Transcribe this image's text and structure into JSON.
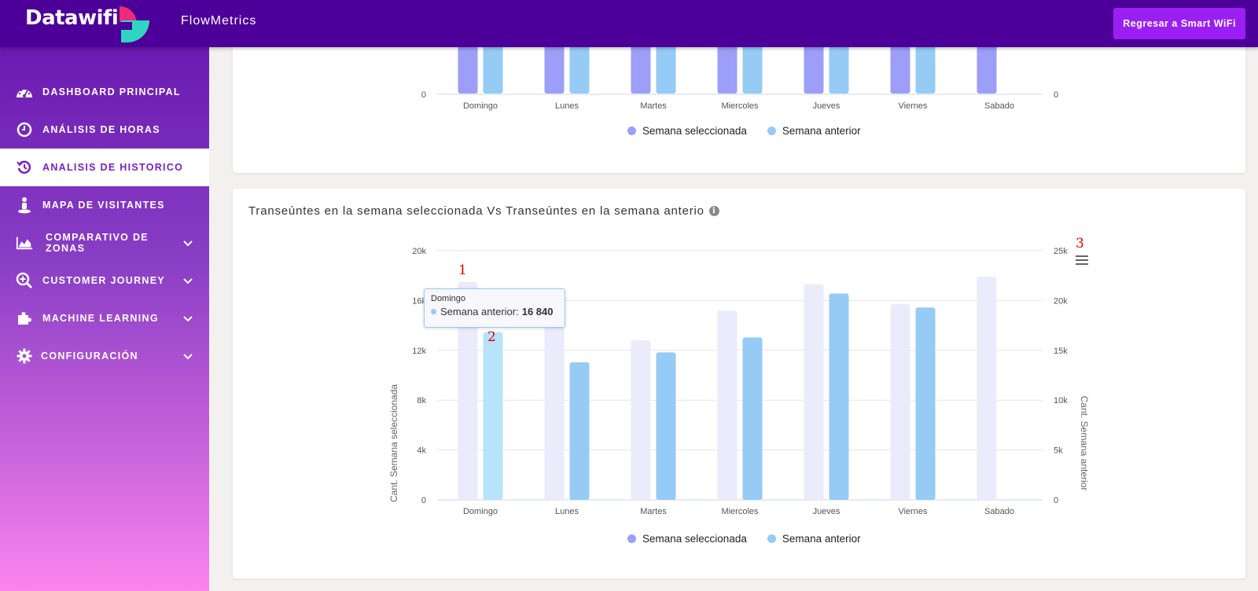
{
  "header": {
    "logo_text": "Datawifi",
    "app_name": "FlowMetrics",
    "back_button": "Regresar a Smart WiFi",
    "colors": {
      "bar": "#4c0099",
      "button": "#9b1ff2"
    }
  },
  "sidebar": {
    "items": [
      {
        "label": "DASHBOARD PRINCIPAL",
        "icon": "dashboard-gauge-icon"
      },
      {
        "label": "ANÁLISIS DE HORAS",
        "icon": "clock-icon"
      },
      {
        "label": "ANALISIS DE HISTORICO",
        "icon": "history-icon",
        "active": true
      },
      {
        "label": "MAPA DE VISITANTES",
        "icon": "map-pin-person-icon"
      },
      {
        "label": "COMPARATIVO DE ZONAS",
        "icon": "area-chart-icon",
        "expandable": true
      },
      {
        "label": "CUSTOMER JOURNEY",
        "icon": "search-plus-icon",
        "expandable": true
      },
      {
        "label": "MACHINE LEARNING",
        "icon": "puzzle-icon",
        "expandable": true
      },
      {
        "label": "CONFIGURACIÓN",
        "icon": "gear-icon",
        "expandable": true
      }
    ]
  },
  "top_chart": {
    "left_zero": "0",
    "right_zero": "0",
    "categories": [
      "Domingo",
      "Lunes",
      "Martes",
      "Miercoles",
      "Jueves",
      "Viernes",
      "Sabado"
    ],
    "legend": [
      "Semana seleccionada",
      "Semana anterior"
    ]
  },
  "main_chart": {
    "title": "Transeúntes en la semana seleccionada Vs Transeúntes en la semana anterio",
    "legend": [
      "Semana seleccionada",
      "Semana anterior"
    ]
  },
  "tooltip": {
    "category": "Domingo",
    "series": "Semana anterior:",
    "value": "16 840"
  },
  "markers": [
    "1",
    "2",
    "3"
  ],
  "chart_data": {
    "type": "bar",
    "title": "Transeúntes en la semana seleccionada Vs Transeúntes en la semana anterio",
    "categories": [
      "Domingo",
      "Lunes",
      "Martes",
      "Miercoles",
      "Jueves",
      "Viernes",
      "Sabado"
    ],
    "ylabel": "Cant. Semana seleccionada",
    "y2label": "Cant. Semana anterior",
    "ylim": [
      0,
      20000
    ],
    "y2lim": [
      0,
      25000
    ],
    "yticks": [
      "0",
      "4k",
      "8k",
      "12k",
      "16k",
      "20k"
    ],
    "y2ticks": [
      "0",
      "5k",
      "10k",
      "15k",
      "20k",
      "25k"
    ],
    "grid": true,
    "legend_position": "bottom",
    "series": [
      {
        "name": "Semana seleccionada",
        "axis": "left",
        "color": "#9c9ef7",
        "inactive_color": "#eaebfb",
        "values": [
          17500,
          16000,
          12800,
          15200,
          17300,
          15700,
          17900
        ]
      },
      {
        "name": "Semana anterior",
        "axis": "right",
        "color": "#95cbf5",
        "values": [
          16840,
          13800,
          14800,
          16300,
          20700,
          19300,
          0
        ]
      }
    ]
  }
}
